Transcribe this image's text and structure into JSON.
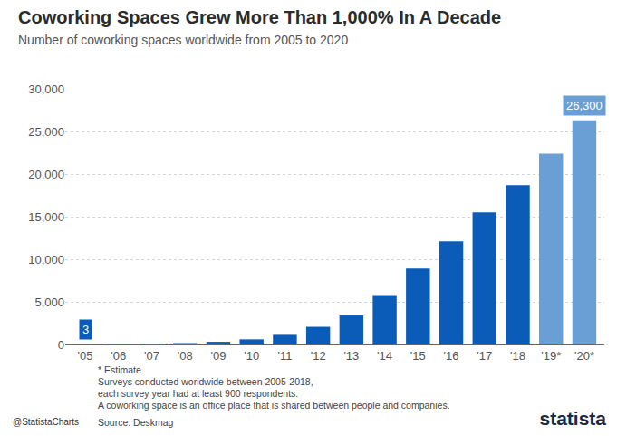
{
  "chart_data": {
    "type": "bar",
    "title": "Coworking Spaces Grew More Than 1,000% In A Decade",
    "subtitle": "Number of coworking spaces worldwide from 2005 to 2020",
    "categories": [
      "'05",
      "'06",
      "'07",
      "'08",
      "'09",
      "'10",
      "'11",
      "'12",
      "'13",
      "'14",
      "'15",
      "'16",
      "'17",
      "'18",
      "'19*",
      "'20*"
    ],
    "values": [
      3,
      30,
      75,
      160,
      310,
      600,
      1130,
      2070,
      3400,
      5800,
      8900,
      12100,
      15500,
      18700,
      22400,
      26300
    ],
    "colors": [
      "#0a5cb8",
      "#0a5cb8",
      "#0a5cb8",
      "#0a5cb8",
      "#0a5cb8",
      "#0a5cb8",
      "#0a5cb8",
      "#0a5cb8",
      "#0a5cb8",
      "#0a5cb8",
      "#0a5cb8",
      "#0a5cb8",
      "#0a5cb8",
      "#0a5cb8",
      "#6a9fd6",
      "#6a9fd6"
    ],
    "data_labels": true,
    "value_labels": [
      "3",
      null,
      null,
      null,
      null,
      null,
      null,
      null,
      null,
      null,
      null,
      null,
      null,
      null,
      null,
      "26,300"
    ],
    "ylim": [
      0,
      30000
    ],
    "yticks": [
      0,
      {
        "value": 5000,
        "label": "5,000"
      },
      {
        "value": 10000,
        "label": "10,000"
      },
      {
        "value": 15000,
        "label": "15,000"
      },
      {
        "value": 20000,
        "label": "20,000"
      },
      {
        "value": 25000,
        "label": "25,000"
      },
      {
        "value": 30000,
        "label": "30,000"
      }
    ],
    "grid": true,
    "notes": [
      "* Estimate",
      "Surveys conducted worldwide between 2005-2018,",
      "each survey year had at least 900 respondents.",
      "A coworking space is an office place that is shared between people and companies."
    ],
    "credit": "@StatistaCharts",
    "source": "Source: Deskmag",
    "logo": "statista"
  }
}
